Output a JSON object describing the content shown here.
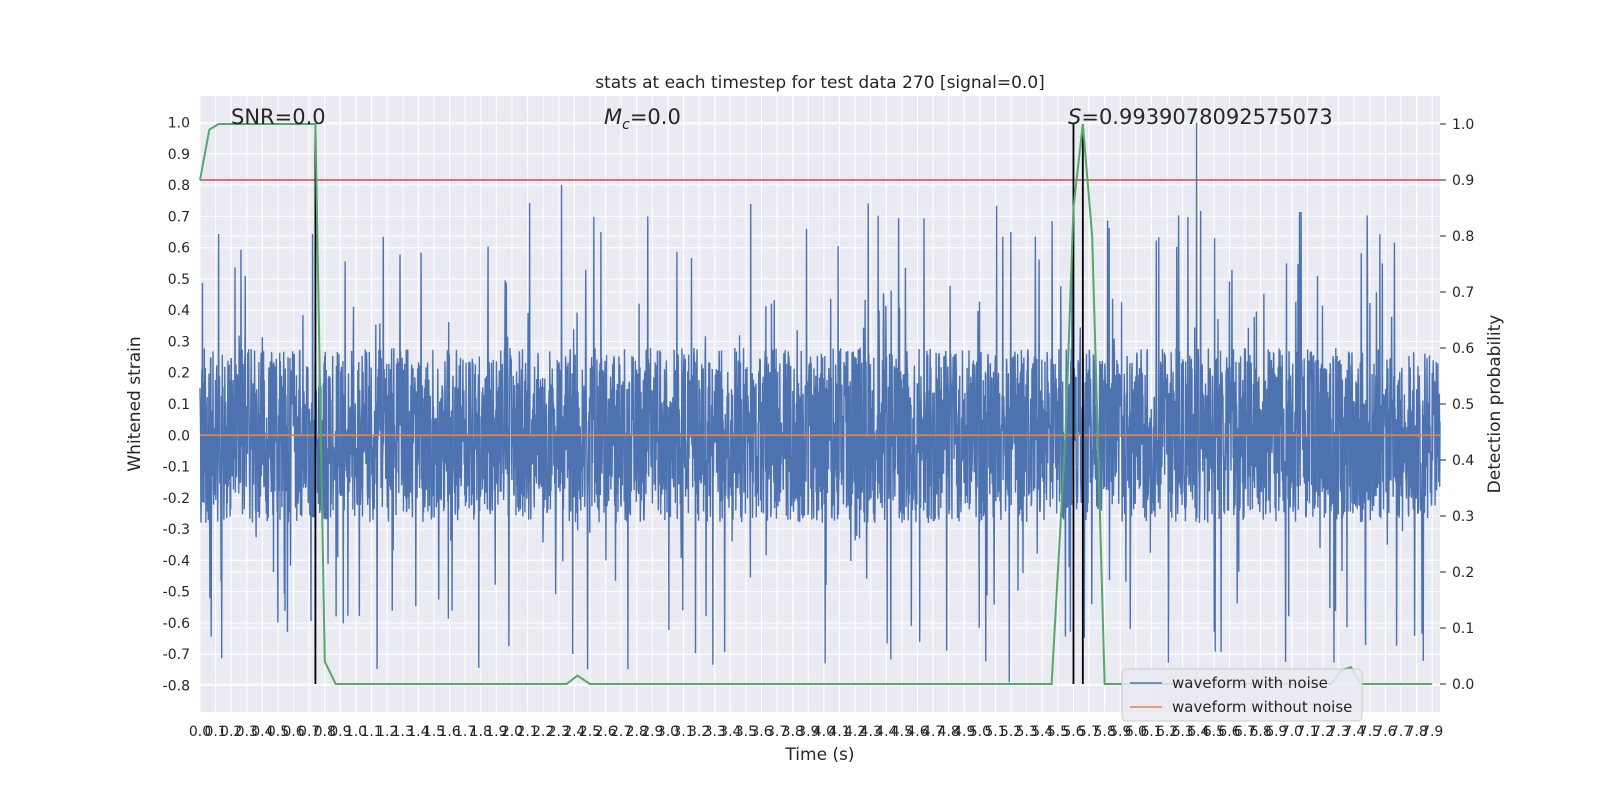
{
  "chart_data": {
    "type": "line",
    "title": "stats at each timestep for test data 270 [signal=0.0]",
    "xlabel": "Time (s)",
    "ylabel": "Whitened strain",
    "ylabel_right": "Detection probability",
    "xlim": [
      0.0,
      7.95
    ],
    "ylim": [
      -0.885,
      1.085
    ],
    "ylim_right": [
      -0.05,
      1.05
    ],
    "x_ticks": [
      "0.0",
      "0.1",
      "0.2",
      "0.3",
      "0.4",
      "0.5",
      "0.6",
      "0.7",
      "0.8",
      "0.9",
      "1.0",
      "1.1",
      "1.2",
      "1.3",
      "1.4",
      "1.5",
      "1.6",
      "1.7",
      "1.8",
      "1.9",
      "2.0",
      "2.1",
      "2.2",
      "2.3",
      "2.4",
      "2.5",
      "2.6",
      "2.7",
      "2.8",
      "2.9",
      "3.0",
      "3.1",
      "3.2",
      "3.3",
      "3.4",
      "3.5",
      "3.6",
      "3.7",
      "3.8",
      "3.9",
      "4.0",
      "4.1",
      "4.2",
      "4.3",
      "4.4",
      "4.5",
      "4.6",
      "4.7",
      "4.8",
      "4.9",
      "5.0",
      "5.1",
      "5.2",
      "5.3",
      "5.4",
      "5.5",
      "5.6",
      "5.7",
      "5.8",
      "5.9",
      "6.0",
      "6.1",
      "6.2",
      "6.3",
      "6.4",
      "6.5",
      "6.6",
      "6.7",
      "6.8",
      "6.9",
      "7.0",
      "7.1",
      "7.2",
      "7.3",
      "7.4",
      "7.5",
      "7.6",
      "7.7",
      "7.8",
      "7.9"
    ],
    "y_ticks": [
      "-0.8",
      "-0.7",
      "-0.6",
      "-0.5",
      "-0.4",
      "-0.3",
      "-0.2",
      "-0.1",
      "0.0",
      "0.1",
      "0.2",
      "0.3",
      "0.4",
      "0.5",
      "0.6",
      "0.7",
      "0.8",
      "0.9",
      "1.0"
    ],
    "y_ticks_right": [
      "0.0",
      "0.1",
      "0.2",
      "0.3",
      "0.4",
      "0.5",
      "0.6",
      "0.7",
      "0.8",
      "0.9",
      "1.0"
    ],
    "annotations": {
      "snr": "SNR=0.0",
      "mc": "=0.0",
      "mc_symbol": "M",
      "mc_sub": "c",
      "s": "=0.9939078092575073",
      "s_symbol": "S"
    },
    "threshold_right": 0.9,
    "vlines_x": [
      0.74,
      5.6,
      5.66
    ],
    "series": [
      {
        "name": "waveform with noise",
        "color": "#4c72b0",
        "noise": {
          "seed": 270,
          "n": 4000,
          "core_amplitude": 0.28,
          "spike_max": 1.0,
          "spike_min": -0.79
        }
      },
      {
        "name": "waveform without noise",
        "color": "#dd8452",
        "values_const": 0.0
      },
      {
        "name": "Detection probability",
        "color": "#55a868",
        "axis": "right",
        "points": [
          [
            0.0,
            0.9
          ],
          [
            0.06,
            0.99
          ],
          [
            0.12,
            1.0
          ],
          [
            0.7,
            1.0
          ],
          [
            0.74,
            1.0
          ],
          [
            0.8,
            0.04
          ],
          [
            0.87,
            0.0
          ],
          [
            2.35,
            0.0
          ],
          [
            2.42,
            0.015
          ],
          [
            2.5,
            0.0
          ],
          [
            5.46,
            0.0
          ],
          [
            5.55,
            0.45
          ],
          [
            5.6,
            0.85
          ],
          [
            5.66,
            1.0
          ],
          [
            5.72,
            0.8
          ],
          [
            5.8,
            0.0
          ],
          [
            7.25,
            0.0
          ],
          [
            7.32,
            0.025
          ],
          [
            7.38,
            0.03
          ],
          [
            7.44,
            0.0
          ],
          [
            7.9,
            0.0
          ]
        ]
      }
    ],
    "colors": {
      "background": "#eaeaf2",
      "grid": "#ffffff",
      "threshold": "#c44e52",
      "vline": "#000000"
    },
    "grid": true,
    "legend_position": "lower-right"
  }
}
